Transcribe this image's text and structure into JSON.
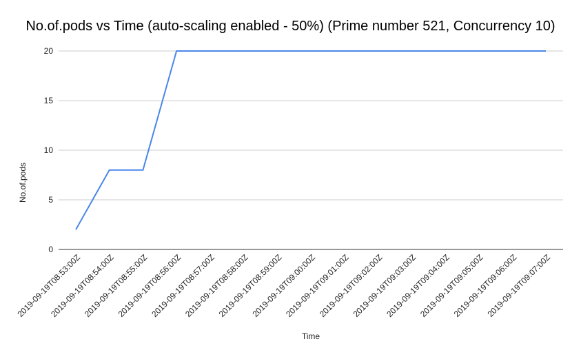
{
  "chart_data": {
    "type": "line",
    "title": "No.of.pods vs Time (auto-scaling enabled - 50%)  (Prime number 521, Concurrency 10)",
    "xlabel": "Time",
    "ylabel": "No.of.pods",
    "categories": [
      "2019-09-19T08:53:00Z",
      "2019-09-19T08:54:00Z",
      "2019-09-19T08:55:00Z",
      "2019-09-19T08:56:00Z",
      "2019-09-19T08:57:00Z",
      "2019-09-19T08:58:00Z",
      "2019-09-19T08:59:00Z",
      "2019-09-19T09:00:00Z",
      "2019-09-19T09:01:00Z",
      "2019-09-19T09:02:00Z",
      "2019-09-19T09:03:00Z",
      "2019-09-19T09:04:00Z",
      "2019-09-19T09:05:00Z",
      "2019-09-19T09:06:00Z",
      "2019-09-19T09:07:00Z"
    ],
    "series": [
      {
        "values": [
          2,
          8,
          8,
          20,
          20,
          20,
          20,
          20,
          20,
          20,
          20,
          20,
          20,
          20,
          20
        ],
        "color": "#4a86e8"
      }
    ],
    "ylim": [
      0,
      20
    ],
    "yticks": [
      0,
      5,
      10,
      15,
      20
    ],
    "grid": true,
    "legend": "none"
  }
}
